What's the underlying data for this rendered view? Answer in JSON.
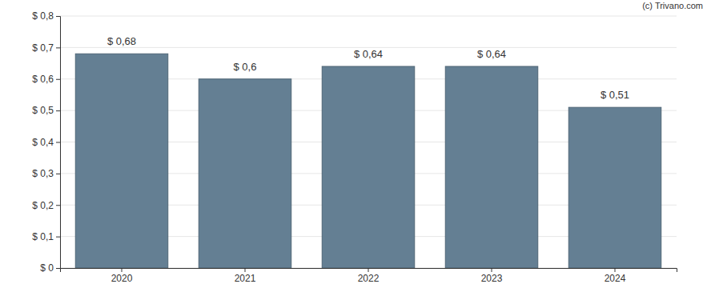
{
  "chart_data": {
    "type": "bar",
    "categories": [
      "2020",
      "2021",
      "2022",
      "2023",
      "2024"
    ],
    "values": [
      0.68,
      0.6,
      0.64,
      0.64,
      0.51
    ],
    "value_labels": [
      "$ 0,68",
      "$ 0,6",
      "$ 0,64",
      "$ 0,64",
      "$ 0,51"
    ],
    "data_labels": true,
    "color": "#647f93",
    "ylim": [
      0,
      0.8
    ],
    "yticks": [
      {
        "value": 0,
        "label": "$ 0"
      },
      {
        "value": 0.1,
        "label": "$ 0,1"
      },
      {
        "value": 0.2,
        "label": "$ 0,2"
      },
      {
        "value": 0.3,
        "label": "$ 0,3"
      },
      {
        "value": 0.4,
        "label": "$ 0,4"
      },
      {
        "value": 0.5,
        "label": "$ 0,5"
      },
      {
        "value": 0.6,
        "label": "$ 0,6"
      },
      {
        "value": 0.7,
        "label": "$ 0,7"
      },
      {
        "value": 0.8,
        "label": "$ 0,8"
      }
    ],
    "grid": true,
    "annotations": [
      "(c) Trivano.com"
    ]
  }
}
